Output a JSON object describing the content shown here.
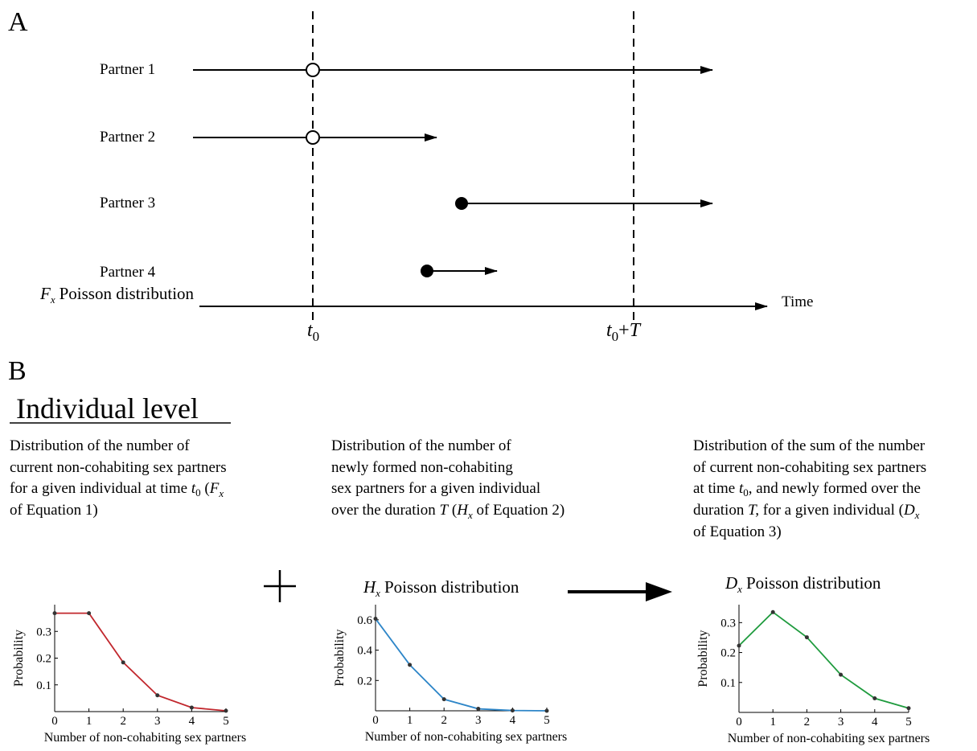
{
  "panel_a": {
    "label": "A",
    "partners": [
      {
        "label": "Partner 1"
      },
      {
        "label": "Partner 2"
      },
      {
        "label": "Partner 3"
      },
      {
        "label": "Partner 4"
      }
    ],
    "time_label": "Time",
    "t0_main": "t",
    "t0_sub": "0",
    "t0T_main": "t",
    "t0T_sub": "0",
    "t0T_plus": "+",
    "t0T_T": "T"
  },
  "panel_b": {
    "label": "B",
    "heading": "Individual level",
    "descriptions": [
      {
        "l1": "Distribution of the number of",
        "l2": "current non-cohabiting sex partners",
        "l3a": "for a given individual at time ",
        "l3t": "t",
        "l3s": "0",
        "l3b": " (",
        "l3F": "F",
        "l3x": "x",
        "l4": "of Equation 1)"
      },
      {
        "l1": "Distribution of the number of",
        "l2": "newly formed non-cohabiting",
        "l3": "sex partners for a given individual",
        "l4a": "over the duration ",
        "l4T": "T",
        "l4b": " (",
        "l4H": "H",
        "l4x": "x",
        "l4c": " of Equation 2)"
      },
      {
        "l1": "Distribution of the sum of the number",
        "l2": "of current non-cohabiting sex partners",
        "l3a": "at time ",
        "l3t": "t",
        "l3s": "0",
        "l3b": ", and newly formed over the",
        "l4a": "duration ",
        "l4T": "T,",
        "l4b": " for a given individual (",
        "l4D": "D",
        "l4x": "x",
        "l5": "of Equation 3)"
      }
    ],
    "plus_symbol": "+"
  },
  "chart_data": [
    {
      "type": "line",
      "title_var": "F",
      "title_sub": "x",
      "title": "Poisson distribution",
      "xlabel": "Number of non-cohabiting sex partners",
      "ylabel": "Probability",
      "x": [
        0,
        1,
        2,
        3,
        4,
        5
      ],
      "values": [
        0.368,
        0.368,
        0.184,
        0.061,
        0.015,
        0.003
      ],
      "xlim": [
        0,
        5
      ],
      "ylim": [
        0,
        0.4
      ],
      "yticks": [
        "0.1",
        "0.2",
        "0.3"
      ],
      "xticks": [
        "0",
        "1",
        "2",
        "3",
        "4",
        "5"
      ],
      "color": "#c1272d"
    },
    {
      "type": "line",
      "title_var": "H",
      "title_sub": "x",
      "title": "Poisson distribution",
      "xlabel": "Number of non-cohabiting sex partners",
      "ylabel": "Probability",
      "x": [
        0,
        1,
        2,
        3,
        4,
        5
      ],
      "values": [
        0.607,
        0.303,
        0.076,
        0.013,
        0.002,
        0.0
      ],
      "xlim": [
        0,
        5
      ],
      "ylim": [
        0,
        0.7
      ],
      "yticks": [
        "0.2",
        "0.4",
        "0.6"
      ],
      "xticks": [
        "0",
        "1",
        "2",
        "3",
        "4",
        "5"
      ],
      "color": "#2e86c8"
    },
    {
      "type": "line",
      "title_var": "D",
      "title_sub": "x",
      "title": "Poisson distribution",
      "xlabel": "Number of non-cohabiting sex partners",
      "ylabel": "Probability",
      "x": [
        0,
        1,
        2,
        3,
        4,
        5
      ],
      "values": [
        0.223,
        0.335,
        0.251,
        0.126,
        0.047,
        0.014
      ],
      "xlim": [
        0,
        5
      ],
      "ylim": [
        0,
        0.36
      ],
      "yticks": [
        "0.1",
        "0.2",
        "0.3"
      ],
      "xticks": [
        "0",
        "1",
        "2",
        "3",
        "4",
        "5"
      ],
      "color": "#1f9b3e"
    }
  ]
}
